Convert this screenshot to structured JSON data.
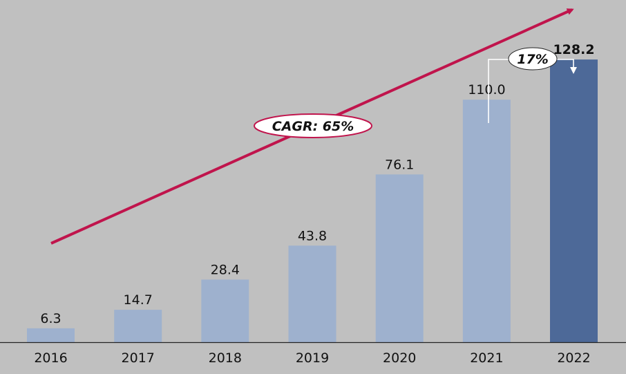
{
  "chart_data": {
    "type": "bar",
    "title": "",
    "xlabel": "",
    "ylabel": "",
    "categories": [
      "2016",
      "2017",
      "2018",
      "2019",
      "2020",
      "2021",
      "2022"
    ],
    "values": [
      6.3,
      14.7,
      28.4,
      43.8,
      76.1,
      110.0,
      128.2
    ],
    "value_labels": [
      "6.3",
      "14.7",
      "28.4",
      "43.8",
      "76.1",
      "110.0",
      "128.2"
    ],
    "ylim": [
      0,
      153
    ],
    "grid": false,
    "highlighted_category": "2022",
    "colors": {
      "bar": "#9eb1ce",
      "highlight_bar": "#4d6998",
      "trend_arrow": "#c0144c",
      "axis": "#222222"
    },
    "annotations": {
      "cagr_label": "CAGR: 65%",
      "growth_label": "17%"
    }
  }
}
